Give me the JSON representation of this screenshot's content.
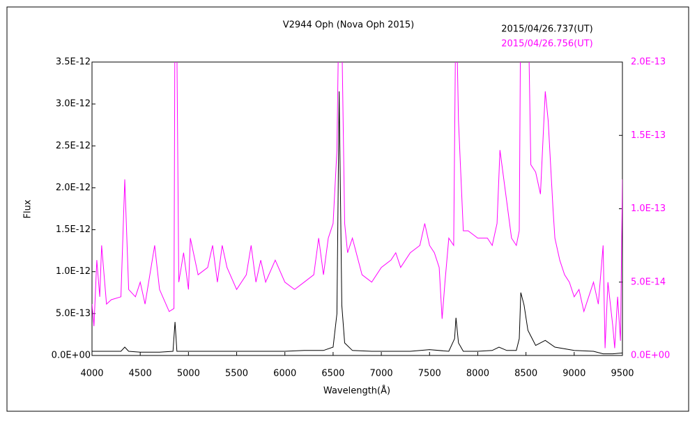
{
  "chart_data": {
    "type": "line",
    "title": "V2944 Oph (Nova Oph 2015)",
    "x_label": "Wavelength(Å)",
    "y_label": "Flux",
    "xlim": [
      4000,
      9500
    ],
    "xticks": [
      4000,
      4500,
      5000,
      5500,
      6000,
      6500,
      7000,
      7500,
      8000,
      8500,
      9000,
      9500
    ],
    "ylim": [
      0,
      3.5e-12
    ],
    "yticks": [
      {
        "value": 0,
        "label": "0.0E+00"
      },
      {
        "value": 5e-13,
        "label": "5.0E-13"
      },
      {
        "value": 1e-12,
        "label": "1.0E-12"
      },
      {
        "value": 1.5e-12,
        "label": "1.5E-12"
      },
      {
        "value": 2e-12,
        "label": "2.0E-12"
      },
      {
        "value": 2.5e-12,
        "label": "2.5E-12"
      },
      {
        "value": 3e-12,
        "label": "3.0E-12"
      },
      {
        "value": 3.5e-12,
        "label": "3.5E-12"
      }
    ],
    "y2lim": [
      0,
      2e-13
    ],
    "y2ticks": [
      {
        "value": 0,
        "label": "0.0E+00"
      },
      {
        "value": 5e-14,
        "label": "5.0E-14"
      },
      {
        "value": 1e-13,
        "label": "1.0E-13"
      },
      {
        "value": 1.5e-13,
        "label": "1.5E-13"
      },
      {
        "value": 2e-13,
        "label": "2.0E-13"
      }
    ],
    "series": [
      {
        "name": "2015/04/26.737(UT)",
        "color": "#000000",
        "axis": "y",
        "x": [
          4000,
          4100,
          4300,
          4340,
          4380,
          4500,
          4700,
          4840,
          4861,
          4880,
          5000,
          5200,
          5400,
          5600,
          5800,
          6000,
          6200,
          6400,
          6500,
          6540,
          6563,
          6590,
          6620,
          6700,
          6900,
          7100,
          7300,
          7500,
          7700,
          7760,
          7774,
          7800,
          7850,
          8000,
          8150,
          8220,
          8300,
          8400,
          8430,
          8446,
          8480,
          8520,
          8600,
          8700,
          8800,
          9000,
          9200,
          9300,
          9400,
          9500
        ],
        "values": [
          5e-14,
          5e-14,
          5e-14,
          1e-13,
          5e-14,
          4e-14,
          4e-14,
          5e-14,
          4e-13,
          5e-14,
          5e-14,
          5e-14,
          5e-14,
          5e-14,
          5e-14,
          5e-14,
          6e-14,
          6e-14,
          1e-13,
          5e-13,
          3.15e-12,
          6e-13,
          1.5e-13,
          6e-14,
          5e-14,
          5e-14,
          5e-14,
          7e-14,
          5e-14,
          2e-13,
          4.5e-13,
          1.5e-13,
          5e-14,
          5e-14,
          6e-14,
          1e-13,
          6e-14,
          6e-14,
          2e-13,
          7.5e-13,
          6e-13,
          3e-13,
          1.2e-13,
          1.8e-13,
          1e-13,
          6e-14,
          5e-14,
          2e-14,
          2e-14,
          3e-14
        ]
      },
      {
        "name": "2015/04/26.756(UT)",
        "color": "#ff00ff",
        "axis": "y2",
        "x": [
          4000,
          4020,
          4050,
          4080,
          4100,
          4150,
          4200,
          4300,
          4340,
          4380,
          4450,
          4500,
          4550,
          4650,
          4700,
          4800,
          4850,
          4861,
          4875,
          4900,
          4950,
          5000,
          5020,
          5100,
          5200,
          5250,
          5300,
          5350,
          5400,
          5500,
          5600,
          5650,
          5700,
          5750,
          5800,
          5900,
          6000,
          6100,
          6200,
          6300,
          6350,
          6400,
          6450,
          6500,
          6540,
          6563,
          6590,
          6620,
          6650,
          6700,
          6800,
          6900,
          7000,
          7100,
          7150,
          7200,
          7300,
          7400,
          7450,
          7500,
          7550,
          7600,
          7630,
          7660,
          7700,
          7750,
          7774,
          7800,
          7850,
          7900,
          8000,
          8100,
          8150,
          8200,
          8230,
          8300,
          8350,
          8400,
          8430,
          8446,
          8520,
          8550,
          8600,
          8650,
          8700,
          8730,
          8780,
          8800,
          8850,
          8900,
          8950,
          9000,
          9050,
          9100,
          9150,
          9200,
          9250,
          9300,
          9320,
          9350,
          9400,
          9420,
          9450,
          9480,
          9500
        ],
        "values": [
          3.5e-14,
          2e-14,
          6.5e-14,
          4e-14,
          7.5e-14,
          3.5e-14,
          3.8e-14,
          4e-14,
          1.2e-13,
          4.5e-14,
          4e-14,
          5e-14,
          3.5e-14,
          7.5e-14,
          4.5e-14,
          3e-14,
          3.2e-14,
          2.5e-13,
          2.5e-13,
          5e-14,
          7e-14,
          4.5e-14,
          8e-14,
          5.5e-14,
          6e-14,
          7.5e-14,
          5e-14,
          7.5e-14,
          6e-14,
          4.5e-14,
          5.5e-14,
          7.5e-14,
          5e-14,
          6.5e-14,
          5e-14,
          6.5e-14,
          5e-14,
          4.5e-14,
          5e-14,
          5.5e-14,
          8e-14,
          5.5e-14,
          8e-14,
          9e-14,
          1.4e-13,
          2.5e-13,
          2.2e-13,
          9e-14,
          7e-14,
          8e-14,
          5.5e-14,
          5e-14,
          6e-14,
          6.5e-14,
          7e-14,
          6e-14,
          7e-14,
          7.5e-14,
          9e-14,
          7.5e-14,
          7e-14,
          6e-14,
          2.5e-14,
          5e-14,
          8e-14,
          7.5e-14,
          2.5e-13,
          1.6e-13,
          8.5e-14,
          8.5e-14,
          8e-14,
          8e-14,
          7.5e-14,
          9e-14,
          1.4e-13,
          1.05e-13,
          8e-14,
          7.5e-14,
          8.5e-14,
          2.5e-13,
          2.5e-13,
          1.3e-13,
          1.25e-13,
          1.1e-13,
          1.8e-13,
          1.6e-13,
          1e-13,
          8e-14,
          6.5e-14,
          5.5e-14,
          5e-14,
          4e-14,
          4.5e-14,
          3e-14,
          4e-14,
          5e-14,
          3.5e-14,
          7.5e-14,
          5e-15,
          5e-14,
          2e-14,
          5e-15,
          4e-14,
          1e-14,
          1.2e-13
        ]
      }
    ]
  }
}
